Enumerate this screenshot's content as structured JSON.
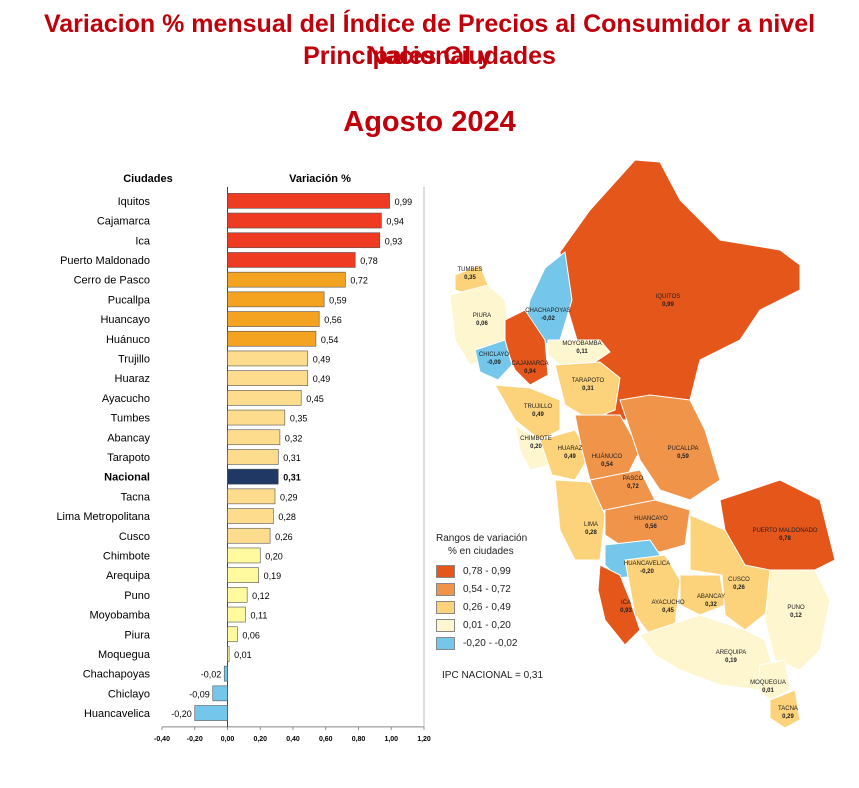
{
  "title": {
    "line1": "Variacion % mensual del Índice de Precios al Consumidor a nivel Nacional y",
    "line2": "Principales Ciudades",
    "period": "Agosto 2024"
  },
  "chart_data": {
    "type": "bar",
    "orientation": "horizontal",
    "category_header": "Ciudades",
    "value_header": "Variación %",
    "categories": [
      "Iquitos",
      "Cajamarca",
      "Ica",
      "Puerto Maldonado",
      "Cerro de Pasco",
      "Pucallpa",
      "Huancayo",
      "Huánuco",
      "Trujillo",
      "Huaraz",
      "Ayacucho",
      "Tumbes",
      "Abancay",
      "Tarapoto",
      "Nacional",
      "Tacna",
      "Lima Metropolitana",
      "Cusco",
      "Chimbote",
      "Arequipa",
      "Puno",
      "Moyobamba",
      "Piura",
      "Moquegua",
      "Chachapoyas",
      "Chiclayo",
      "Huancavelica"
    ],
    "values": [
      0.99,
      0.94,
      0.93,
      0.78,
      0.72,
      0.59,
      0.56,
      0.54,
      0.49,
      0.49,
      0.45,
      0.35,
      0.32,
      0.31,
      0.31,
      0.29,
      0.28,
      0.26,
      0.2,
      0.19,
      0.12,
      0.11,
      0.06,
      0.01,
      -0.02,
      -0.09,
      -0.2
    ],
    "value_labels": [
      "0,99",
      "0,94",
      "0,93",
      "0,78",
      "0,72",
      "0,59",
      "0,56",
      "0,54",
      "0,49",
      "0,49",
      "0,45",
      "0,35",
      "0,32",
      "0,31",
      "0,31",
      "0,29",
      "0,28",
      "0,26",
      "0,20",
      "0,19",
      "0,12",
      "0,11",
      "0,06",
      "0,01",
      "-0,02",
      "-0,09",
      "-0,20"
    ],
    "highlight": "Nacional",
    "xlim": [
      -0.4,
      1.2
    ],
    "xticks": [
      -0.4,
      -0.2,
      0.0,
      0.2,
      0.4,
      0.6,
      0.8,
      1.0,
      1.2
    ],
    "xtick_labels": [
      "-0,40",
      "-0,20",
      "0,00",
      "0,20",
      "0,40",
      "0,60",
      "0,80",
      "1,00",
      "1,20"
    ]
  },
  "colors": {
    "title": "#c0000a",
    "r1": "#ef3b21",
    "r2": "#f4a321",
    "r3": "#fddc8e",
    "r4": "#fffaa0",
    "r5": "#74c6ea",
    "nacional": "#1f3864",
    "map_r1": "#e5561b",
    "map_r2": "#f0944a",
    "map_r3": "#fcd27a",
    "map_r4": "#fdf6cf",
    "map_r5": "#74c6ea"
  },
  "legend": {
    "title_line1": "Rangos de variación",
    "title_line2": "% en ciudades",
    "ranges": [
      "0,78  -  0,99",
      "0,54  -  0,72",
      "0,26  -  0,49",
      "0,01  -  0,20",
      "-0,20  -  -0,02"
    ]
  },
  "ipc_nacional": "IPC NACIONAL =  0,31",
  "map_labels": [
    {
      "name": "TUMBES",
      "value": "0,35"
    },
    {
      "name": "PIURA",
      "value": "0,06"
    },
    {
      "name": "CHACHAPOYAS",
      "value": "-0,02"
    },
    {
      "name": "IQUITOS",
      "value": "0,99"
    },
    {
      "name": "MOYOBAMBA",
      "value": "0,11"
    },
    {
      "name": "CHICLAYO",
      "value": "-0,09"
    },
    {
      "name": "CAJAMARCA",
      "value": "0,94"
    },
    {
      "name": "TARAPOTO",
      "value": "0,31"
    },
    {
      "name": "TRUJILLO",
      "value": "0,49"
    },
    {
      "name": "CHIMBOTE",
      "value": "0,20"
    },
    {
      "name": "HUARAZ",
      "value": "0,49"
    },
    {
      "name": "HUÁNUCO",
      "value": "0,54"
    },
    {
      "name": "PUCALLPA",
      "value": "0,59"
    },
    {
      "name": "PASCO",
      "value": "0,72"
    },
    {
      "name": "LIMA",
      "value": "0,28"
    },
    {
      "name": "HUANCAYO",
      "value": "0,56"
    },
    {
      "name": "HUANCAVELICA",
      "value": "-0,20"
    },
    {
      "name": "PUERTO MALDONADO",
      "value": "0,78"
    },
    {
      "name": "ICA",
      "value": "0,93"
    },
    {
      "name": "AYACUCHO",
      "value": "0,45"
    },
    {
      "name": "ABANCAY",
      "value": "0,32"
    },
    {
      "name": "CUSCO",
      "value": "0,26"
    },
    {
      "name": "PUNO",
      "value": "0,12"
    },
    {
      "name": "AREQUIPA",
      "value": "0,19"
    },
    {
      "name": "MOQUEGUA",
      "value": "0,01"
    },
    {
      "name": "TACNA",
      "value": "0,29"
    }
  ]
}
